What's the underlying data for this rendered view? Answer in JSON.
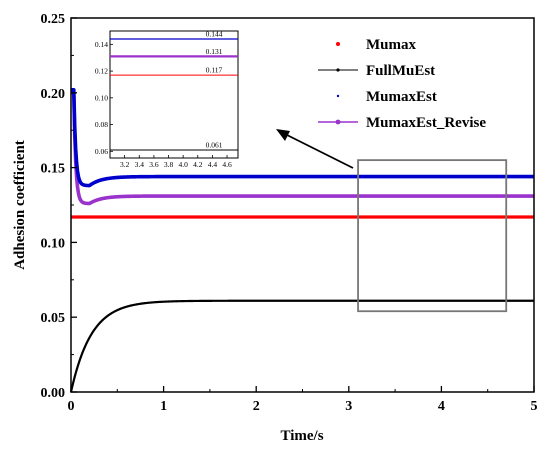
{
  "chart_data": {
    "type": "line",
    "xlabel": "Time/s",
    "ylabel": "Adhesion coefficient",
    "xlim": [
      0,
      5
    ],
    "ylim": [
      0,
      0.25
    ],
    "x_ticks": [
      "0",
      "1",
      "2",
      "3",
      "4",
      "5"
    ],
    "y_ticks": [
      "0.00",
      "0.05",
      "0.10",
      "0.15",
      "0.20",
      "0.25"
    ],
    "grid": false,
    "legend_position": "top-right",
    "series": [
      {
        "name": "Mumax",
        "color": "#ff0000",
        "steady_value": 0.117
      },
      {
        "name": "FullMuEst",
        "color": "#000000",
        "steady_value": 0.061,
        "start_value": 0.0,
        "time_constant": 0.22
      },
      {
        "name": "MumaxEst",
        "color": "#0000cc",
        "steady_value": 0.144,
        "initial_value": 0.202,
        "dip_value": 0.138,
        "dip_time": 0.2
      },
      {
        "name": "MumaxEst_Revise",
        "color": "#9933cc",
        "steady_value": 0.131,
        "initial_value": 0.2,
        "dip_value": 0.126,
        "dip_time": 0.2
      }
    ],
    "zoom_box": {
      "x_range": [
        3.1,
        4.7
      ],
      "y_range": [
        0.054,
        0.155
      ]
    },
    "inset": {
      "xlim": [
        3.0,
        4.75
      ],
      "ylim": [
        0.055,
        0.15
      ],
      "x_ticks": [
        "3.2",
        "3.4",
        "3.6",
        "3.8",
        "4.0",
        "4.2",
        "4.4",
        "4.6"
      ],
      "y_ticks": [
        "0.06",
        "0.08",
        "0.10",
        "0.12",
        "0.14"
      ],
      "labels": [
        {
          "text": "0.144",
          "series": "MumaxEst"
        },
        {
          "text": "0.131",
          "series": "MumaxEst_Revise"
        },
        {
          "text": "0.117",
          "series": "Mumax"
        },
        {
          "text": "0.061",
          "series": "FullMuEst"
        }
      ]
    }
  }
}
